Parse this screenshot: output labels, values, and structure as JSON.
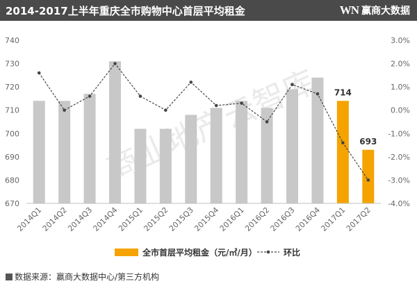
{
  "header": {
    "title": "2014-2017上半年重庆全市购物中心首层平均租金",
    "brand_mark": "WN",
    "brand_name": "赢商大数据"
  },
  "watermark": "商业地产云智库",
  "source_text": "数据来源：赢商大数据中心/第三方机构",
  "colors": {
    "gray_bar": "#c8c8c8",
    "highlight_bar": "#f5a300",
    "line": "#444444",
    "header_bg": "#4a4a4a"
  },
  "chart_data": {
    "type": "bar",
    "categories": [
      "2014Q1",
      "2014Q2",
      "2014Q3",
      "2014Q4",
      "2015Q1",
      "2015Q2",
      "2015Q3",
      "2015Q4",
      "2016Q1",
      "2016Q2",
      "2016Q3",
      "2016Q4",
      "2017Q1",
      "2017Q2"
    ],
    "series": [
      {
        "name": "全市首层平均租金（元/㎡/月）",
        "type": "bar",
        "axis": "left",
        "values": [
          714,
          714,
          717,
          731,
          702,
          702,
          708,
          711,
          714,
          711,
          719,
          724,
          714,
          693
        ],
        "highlight": [
          false,
          false,
          false,
          false,
          false,
          false,
          false,
          false,
          false,
          false,
          false,
          false,
          true,
          true
        ]
      },
      {
        "name": "环比",
        "type": "line",
        "axis": "right",
        "values": [
          1.6,
          0.0,
          0.6,
          2.0,
          0.6,
          0.0,
          1.2,
          0.2,
          0.3,
          -0.5,
          1.1,
          0.7,
          -1.4,
          -3.0
        ]
      }
    ],
    "data_labels": [
      {
        "category": "2017Q1",
        "text": "714"
      },
      {
        "category": "2017Q2",
        "text": "693"
      }
    ],
    "ylim": [
      670,
      740
    ],
    "y_ticks": [
      "740",
      "730",
      "720",
      "710",
      "700",
      "690",
      "680",
      "670"
    ],
    "y2lim": [
      -4.0,
      3.0
    ],
    "y2_ticks": [
      "3.0%",
      "2.0%",
      "1.0%",
      "0.0%",
      "-1.0%",
      "-2.0%",
      "-3.0%",
      "-4.0%"
    ],
    "grid": false,
    "legend_position": "bottom"
  }
}
